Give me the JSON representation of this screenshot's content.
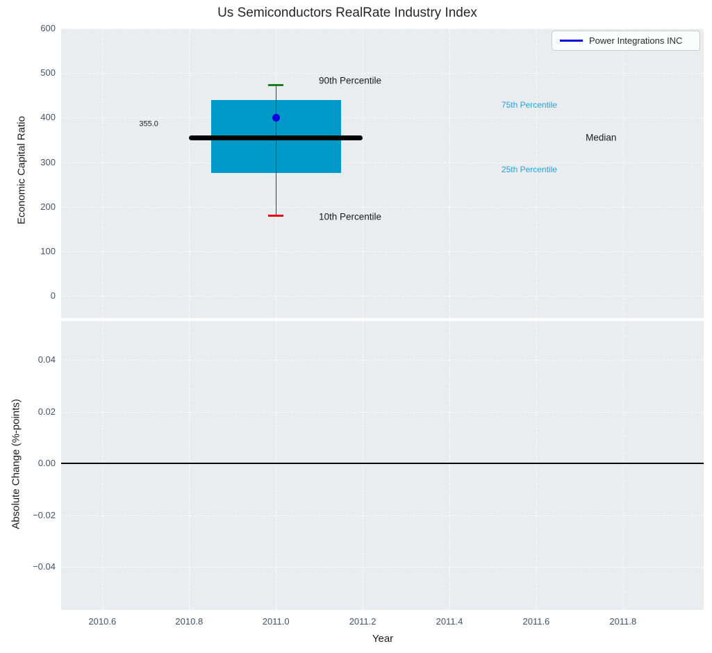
{
  "figure": {
    "title": "Us Semiconductors RealRate Industry Index",
    "background_color": "#ffffff",
    "plot_background_color": "#e9edf0",
    "grid_color": "#ffffff",
    "tick_label_color": "#43536a",
    "text_color": "#1a1a1a"
  },
  "legend": {
    "label": "Power Integrations INC",
    "line_color": "#0000e0",
    "position": "top-right"
  },
  "chart_data": [
    {
      "type": "boxplot",
      "title": "Us Semiconductors RealRate Industry Index",
      "ylabel": "Economic Capital Ratio",
      "xlim": [
        2010.505,
        2011.986
      ],
      "ylim": [
        -50,
        600
      ],
      "grid": "white-dashed",
      "xticks": [
        {
          "v": 2010.6,
          "label": "2010.6"
        },
        {
          "v": 2010.8,
          "label": "2010.8"
        },
        {
          "v": 2011.0,
          "label": "2011.0"
        },
        {
          "v": 2011.2,
          "label": "2011.2"
        },
        {
          "v": 2011.4,
          "label": "2011.4"
        },
        {
          "v": 2011.6,
          "label": "2011.6"
        },
        {
          "v": 2011.8,
          "label": "2011.8"
        }
      ],
      "yticks": [
        {
          "v": 0,
          "label": "0"
        },
        {
          "v": 100,
          "label": "100"
        },
        {
          "v": 200,
          "label": "200"
        },
        {
          "v": 300,
          "label": "300"
        },
        {
          "v": 400,
          "label": "400"
        },
        {
          "v": 500,
          "label": "500"
        },
        {
          "v": 600,
          "label": "600"
        }
      ],
      "box": {
        "x": 2011.0,
        "p10": 180,
        "p25": 275,
        "median": 355,
        "p75": 440,
        "p90": 473,
        "box_halfwidth_years": 0.15,
        "median_halfwidth_years": 0.2,
        "cap_halfwidth_years": 0.018,
        "box_color": "#009ac8",
        "median_color": "#000000",
        "whisker_color": "#3d3d3d",
        "cap_top_color": "#17801c",
        "cap_bottom_color": "#e8000b"
      },
      "company_point": {
        "x": 2011.0,
        "y": 400,
        "color": "#0000e0",
        "name": "Power Integrations INC"
      },
      "annotations": [
        {
          "text": "355.0",
          "x": 2010.685,
          "y": 385,
          "color": "#1a1a1a",
          "size": 11
        },
        {
          "text": "90th Percentile",
          "x": 2011.099,
          "y": 483,
          "color": "#1a1a1a",
          "size": 13.5
        },
        {
          "text": "75th Percentile",
          "x": 2011.52,
          "y": 429,
          "color": "#2a9fd4",
          "size": 12
        },
        {
          "text": "Median",
          "x": 2011.714,
          "y": 356,
          "color": "#1a1a1a",
          "size": 13.5
        },
        {
          "text": "25th Percentile",
          "x": 2011.52,
          "y": 284,
          "color": "#2a9fd4",
          "size": 12
        },
        {
          "text": "10th Percentile",
          "x": 2011.099,
          "y": 178,
          "color": "#1a1a1a",
          "size": 13.5
        }
      ]
    },
    {
      "type": "line",
      "ylabel": "Absolute Change (%-points)",
      "xlabel": "Year",
      "xlim": [
        2010.505,
        2011.986
      ],
      "ylim": [
        -0.0566,
        0.0551
      ],
      "grid": "white-dashed",
      "xticks": [
        {
          "v": 2010.6,
          "label": "2010.6"
        },
        {
          "v": 2010.8,
          "label": "2010.8"
        },
        {
          "v": 2011.0,
          "label": "2011.0"
        },
        {
          "v": 2011.2,
          "label": "2011.2"
        },
        {
          "v": 2011.4,
          "label": "2011.4"
        },
        {
          "v": 2011.6,
          "label": "2011.6"
        },
        {
          "v": 2011.8,
          "label": "2011.8"
        }
      ],
      "yticks": [
        {
          "v": 0.04,
          "label": "0.04"
        },
        {
          "v": 0.02,
          "label": "0.02"
        },
        {
          "v": 0.0,
          "label": "0.00"
        },
        {
          "v": -0.02,
          "label": "−0.02"
        },
        {
          "v": -0.04,
          "label": "−0.04"
        }
      ],
      "zero_line": {
        "y": 0.0,
        "color": "#000000"
      },
      "series": [
        {
          "name": "Power Integrations INC",
          "x": [
            2011.0
          ],
          "y": [
            0.0
          ]
        }
      ]
    }
  ]
}
